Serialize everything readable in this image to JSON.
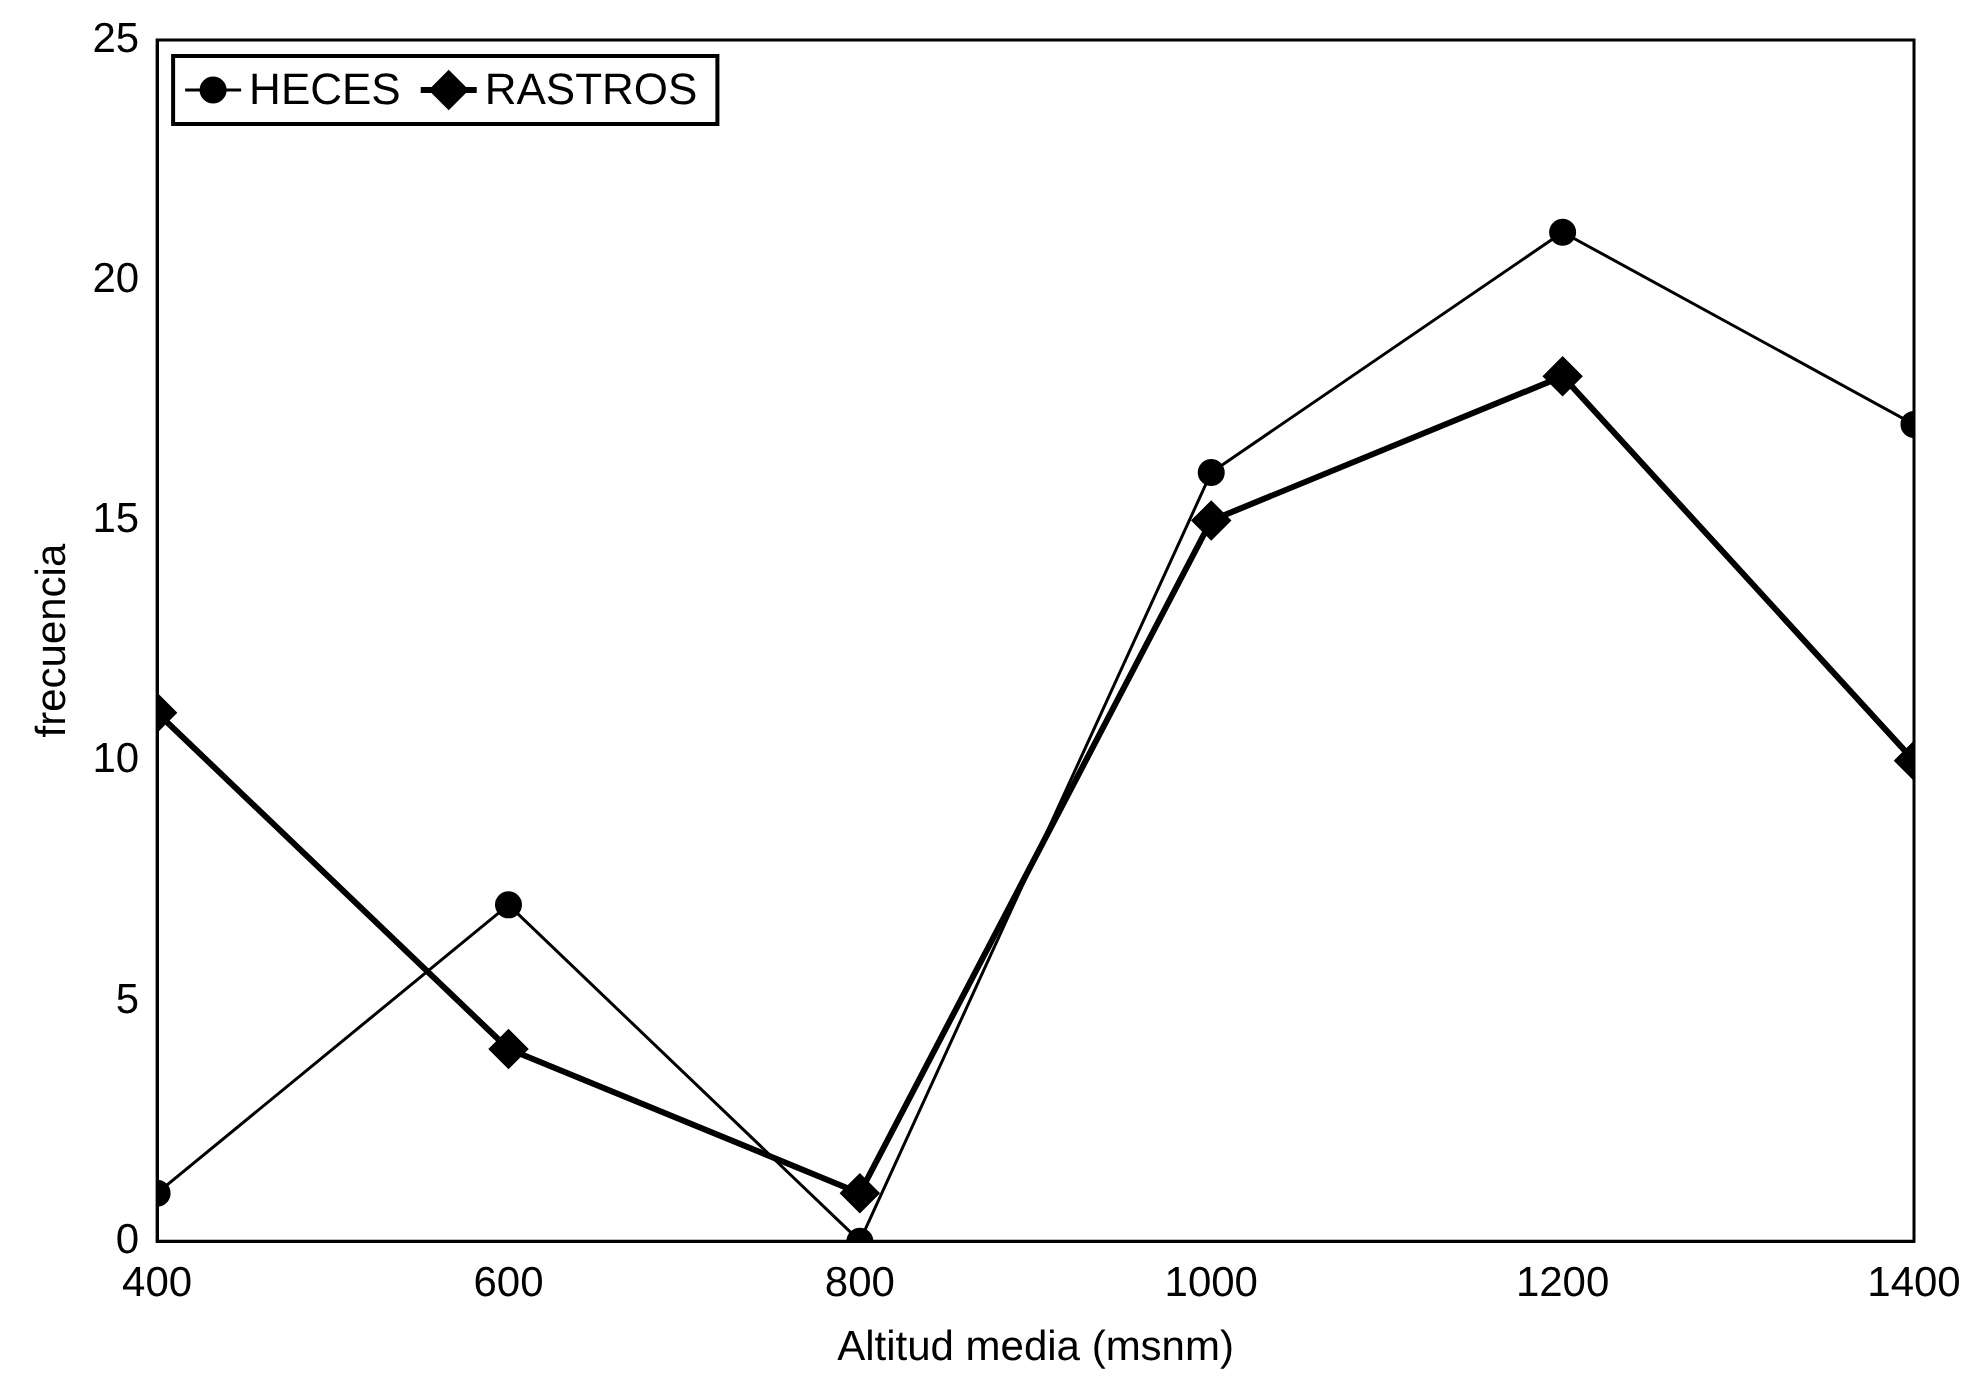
{
  "chart_data": {
    "type": "line",
    "xlabel": "Altitud media (msnm)",
    "ylabel": "frecuencia",
    "x": [
      400,
      600,
      800,
      1000,
      1200,
      1400
    ],
    "series": [
      {
        "name": "HECES",
        "color": "#000000",
        "marker": "circle",
        "values": [
          1,
          7,
          0,
          16,
          21,
          17
        ]
      },
      {
        "name": "RASTROS",
        "color": "#000000",
        "marker": "diamond",
        "values": [
          11,
          4,
          1,
          15,
          18,
          10
        ]
      }
    ],
    "xlim": [
      400,
      1400
    ],
    "xticks": [
      400,
      600,
      800,
      1000,
      1200,
      1400
    ],
    "ylim": [
      0,
      25
    ],
    "yticks": [
      0,
      5,
      10,
      15,
      20,
      25
    ],
    "grid": false,
    "legend": "top left",
    "line_style": "solid"
  }
}
